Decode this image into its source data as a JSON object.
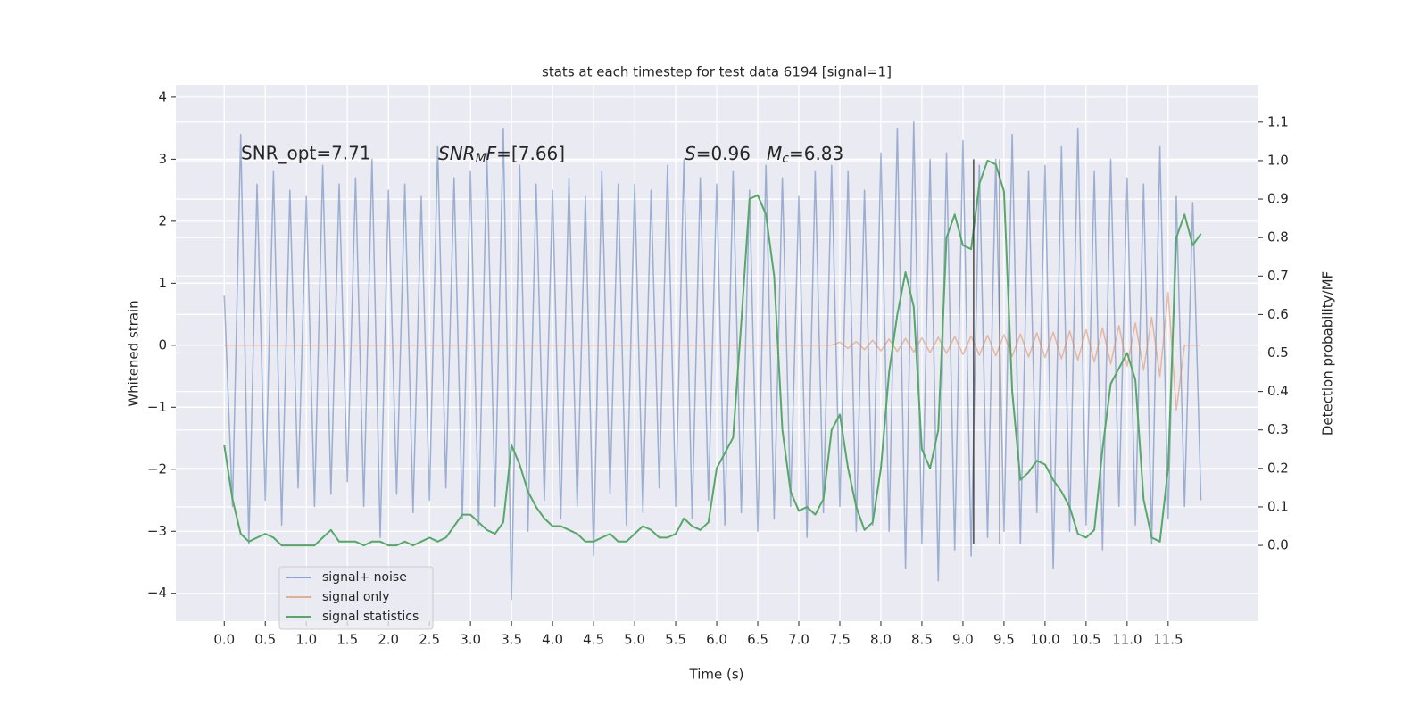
{
  "chart_data": {
    "type": "line",
    "title": "stats at each timestep for test data 6194 [signal=1]",
    "xlabel": "Time (s)",
    "ylabel": "Whitened strain",
    "y2label": "Detection probability/MF",
    "annotations": [
      "SNR_opt=7.71",
      [
        "SNR",
        "M",
        "F",
        "=[7.66]"
      ],
      [
        "S",
        "=0.96"
      ],
      [
        "M",
        "c",
        "=6.83"
      ]
    ],
    "x": [
      0,
      0.1,
      0.2,
      0.3,
      0.4,
      0.5,
      0.6,
      0.7,
      0.8,
      0.9,
      1,
      1.1,
      1.2,
      1.3,
      1.4,
      1.5,
      1.6,
      1.7,
      1.8,
      1.9,
      2,
      2.1,
      2.2,
      2.3,
      2.4,
      2.5,
      2.6,
      2.7,
      2.8,
      2.9,
      3,
      3.1,
      3.2,
      3.3,
      3.4,
      3.5,
      3.6,
      3.7,
      3.8,
      3.9,
      4,
      4.1,
      4.2,
      4.3,
      4.4,
      4.5,
      4.6,
      4.7,
      4.8,
      4.9,
      5,
      5.1,
      5.2,
      5.3,
      5.4,
      5.5,
      5.6,
      5.7,
      5.8,
      5.9,
      6,
      6.1,
      6.2,
      6.3,
      6.4,
      6.5,
      6.6,
      6.7,
      6.8,
      6.9,
      7,
      7.1,
      7.2,
      7.3,
      7.4,
      7.5,
      7.6,
      7.7,
      7.8,
      7.9,
      8,
      8.1,
      8.2,
      8.3,
      8.4,
      8.5,
      8.6,
      8.7,
      8.8,
      8.9,
      9,
      9.1,
      9.2,
      9.3,
      9.4,
      9.5,
      9.6,
      9.7,
      9.8,
      9.9,
      10,
      10.1,
      10.2,
      10.3,
      10.4,
      10.5,
      10.6,
      10.7,
      10.8,
      10.9,
      11,
      11.1,
      11.2,
      11.3,
      11.4,
      11.5,
      11.6,
      11.7,
      11.8,
      11.9
    ],
    "series": [
      {
        "name": "signal+ noise",
        "color": "#4c72b0",
        "values": [
          0.8,
          -2.6,
          3.4,
          -3.2,
          2.6,
          -2.5,
          2.8,
          -2.9,
          2.5,
          -2.3,
          2.4,
          -2.6,
          2.9,
          -2.4,
          2.6,
          -2.2,
          2.7,
          -2.6,
          3.0,
          -3.1,
          2.5,
          -2.4,
          2.6,
          -2.7,
          2.4,
          -2.5,
          3.2,
          -2.3,
          2.7,
          -2.8,
          2.8,
          -2.9,
          3.1,
          -2.6,
          3.5,
          -4.1,
          2.9,
          -3.0,
          2.6,
          -2.5,
          2.5,
          -2.8,
          2.7,
          -2.6,
          2.4,
          -3.4,
          2.8,
          -2.4,
          2.6,
          -2.9,
          2.6,
          -2.7,
          2.5,
          -2.3,
          2.9,
          -2.6,
          3.0,
          -2.8,
          2.7,
          -2.5,
          2.6,
          -2.9,
          2.8,
          -2.7,
          2.5,
          -3.0,
          2.9,
          -2.8,
          2.7,
          -2.6,
          2.4,
          -3.1,
          2.8,
          -2.7,
          2.9,
          -2.6,
          2.8,
          -3.0,
          2.5,
          -2.9,
          3.1,
          -3.0,
          3.5,
          -3.6,
          3.6,
          -3.2,
          3.0,
          -3.8,
          3.1,
          -3.3,
          3.3,
          -3.4,
          2.9,
          -3.1,
          3.0,
          -3.0,
          3.4,
          -3.2,
          2.8,
          -2.7,
          2.9,
          -3.6,
          3.2,
          -3.0,
          3.5,
          -2.9,
          2.8,
          -3.3,
          3.0,
          -2.6,
          2.7,
          -2.9,
          2.6,
          -3.2,
          3.2,
          -2.8,
          2.4,
          -2.6,
          2.3,
          -2.5
        ]
      },
      {
        "name": "signal only",
        "color": "#dd8452",
        "values": [
          0,
          0,
          0,
          0,
          0,
          0,
          0,
          0,
          0,
          0,
          0,
          0,
          0,
          0,
          0,
          0,
          0,
          0,
          0,
          0,
          0,
          0,
          0,
          0,
          0,
          0,
          0,
          0,
          0,
          0,
          0,
          0,
          0,
          0,
          0,
          0,
          0,
          0,
          0,
          0,
          0,
          0,
          0,
          0,
          0,
          0,
          0,
          0,
          0,
          0,
          0,
          0,
          0,
          0,
          0,
          0,
          0,
          0,
          0,
          0,
          0,
          0,
          0,
          0,
          0,
          0,
          0,
          0,
          0,
          0,
          0,
          0,
          0,
          0,
          0,
          0.05,
          -0.05,
          0.06,
          -0.07,
          0.08,
          -0.09,
          0.1,
          -0.1,
          0.11,
          -0.11,
          0.12,
          -0.12,
          0.13,
          -0.13,
          0.14,
          -0.15,
          0.15,
          -0.16,
          0.16,
          -0.17,
          0.17,
          -0.18,
          0.18,
          -0.19,
          0.2,
          -0.2,
          0.21,
          -0.22,
          0.23,
          -0.24,
          0.25,
          -0.27,
          0.28,
          -0.3,
          0.32,
          -0.34,
          0.36,
          -0.4,
          0.45,
          -0.5,
          0.85,
          -1.05,
          0,
          0,
          0
        ]
      },
      {
        "name": "signal statistics",
        "color": "#55a868",
        "axis": "y2",
        "values": [
          0.26,
          0.12,
          0.03,
          0.01,
          0.02,
          0.03,
          0.02,
          0.0,
          0.0,
          0.0,
          0.0,
          0.0,
          0.02,
          0.04,
          0.01,
          0.01,
          0.01,
          0.0,
          0.01,
          0.01,
          0.0,
          0.0,
          0.01,
          0.0,
          0.01,
          0.02,
          0.01,
          0.02,
          0.05,
          0.08,
          0.08,
          0.06,
          0.04,
          0.03,
          0.06,
          0.26,
          0.21,
          0.14,
          0.1,
          0.07,
          0.05,
          0.05,
          0.04,
          0.03,
          0.01,
          0.01,
          0.02,
          0.03,
          0.01,
          0.01,
          0.03,
          0.05,
          0.04,
          0.02,
          0.02,
          0.03,
          0.07,
          0.05,
          0.04,
          0.06,
          0.2,
          0.24,
          0.28,
          0.58,
          0.9,
          0.91,
          0.86,
          0.7,
          0.3,
          0.14,
          0.09,
          0.1,
          0.08,
          0.12,
          0.3,
          0.34,
          0.2,
          0.1,
          0.04,
          0.06,
          0.2,
          0.45,
          0.6,
          0.71,
          0.62,
          0.25,
          0.2,
          0.3,
          0.8,
          0.86,
          0.78,
          0.77,
          0.94,
          1.0,
          0.99,
          0.92,
          0.4,
          0.17,
          0.19,
          0.22,
          0.21,
          0.17,
          0.14,
          0.1,
          0.03,
          0.02,
          0.04,
          0.25,
          0.42,
          0.46,
          0.5,
          0.43,
          0.12,
          0.02,
          0.01,
          0.2,
          0.8,
          0.86,
          0.78,
          0.81
        ]
      }
    ],
    "vlines": {
      "x": [
        9.13,
        9.45
      ],
      "ymin": -3.2,
      "ymax": 3.0,
      "color": "#333333"
    },
    "xlim": [
      -0.59,
      12.6
    ],
    "ylim": [
      -4.45,
      4.2
    ],
    "y2lim": [
      -0.197,
      1.197
    ],
    "xticks": [
      {
        "value": 0,
        "label": "0.0"
      },
      0.5,
      {
        "value": 1,
        "label": "1.0"
      },
      1.5,
      {
        "value": 2,
        "label": "2.0"
      },
      2.5,
      {
        "value": 3,
        "label": "3.0"
      },
      3.5,
      {
        "value": 4,
        "label": "4.0"
      },
      4.5,
      {
        "value": 5,
        "label": "5.0"
      },
      5.5,
      {
        "value": 6,
        "label": "6.0"
      },
      6.5,
      {
        "value": 7,
        "label": "7.0"
      },
      7.5,
      {
        "value": 8,
        "label": "8.0"
      },
      8.5,
      {
        "value": 9,
        "label": "9.0"
      },
      9.5,
      {
        "value": 10,
        "label": "10.0"
      },
      10.5,
      {
        "value": 11,
        "label": "11.0"
      },
      11.5
    ],
    "yticks": [
      {
        "value": -4,
        "label": "−4"
      },
      {
        "value": -3,
        "label": "−3"
      },
      {
        "value": -2,
        "label": "−2"
      },
      {
        "value": -1,
        "label": "−1"
      },
      0,
      1,
      2,
      3,
      4
    ],
    "y2ticks": [
      {
        "value": 0,
        "label": "0.0"
      },
      0.1,
      0.2,
      0.3,
      0.4,
      0.5,
      0.6,
      0.7,
      0.8,
      0.9,
      {
        "value": 1,
        "label": "1.0"
      },
      1.1
    ],
    "grid": true,
    "legend": "lower left"
  }
}
